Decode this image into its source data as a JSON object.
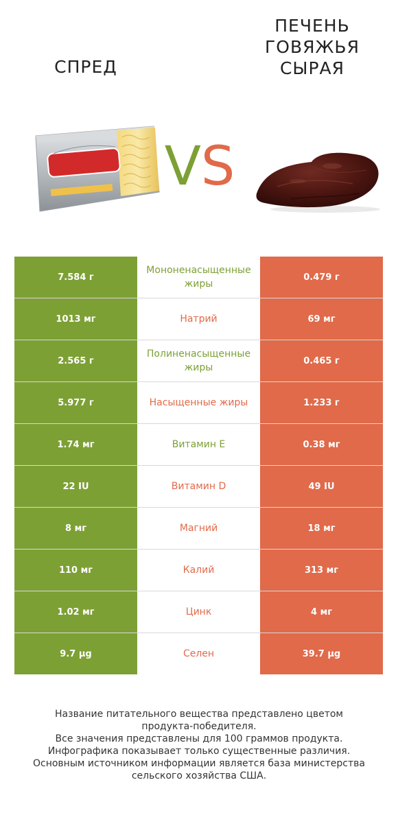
{
  "title_left": "Спред",
  "title_right_lines": [
    "Печень",
    "говяжья",
    "сырая"
  ],
  "vs": {
    "v": "V",
    "s": "S"
  },
  "colors": {
    "green": "#7da035",
    "red": "#e06a4a"
  },
  "images": {
    "left": "spread-pack-image",
    "right": "raw-beef-liver-image"
  },
  "chart_data": {
    "type": "table",
    "columns": [
      "Спред",
      "Печень говяжья сырая"
    ],
    "rows": [
      {
        "label": "Мононенасыщенные жиры",
        "left": "7.584 г",
        "right": "0.479 г",
        "winner": "green"
      },
      {
        "label": "Натрий",
        "left": "1013 мг",
        "right": "69 мг",
        "winner": "red"
      },
      {
        "label": "Полиненасыщенные жиры",
        "left": "2.565 г",
        "right": "0.465 г",
        "winner": "green"
      },
      {
        "label": "Насыщенные жиры",
        "left": "5.977 г",
        "right": "1.233 г",
        "winner": "red"
      },
      {
        "label": "Витамин E",
        "left": "1.74 мг",
        "right": "0.38 мг",
        "winner": "green"
      },
      {
        "label": "Витамин D",
        "left": "22 IU",
        "right": "49 IU",
        "winner": "red"
      },
      {
        "label": "Магний",
        "left": "8 мг",
        "right": "18 мг",
        "winner": "red"
      },
      {
        "label": "Калий",
        "left": "110 мг",
        "right": "313 мг",
        "winner": "red"
      },
      {
        "label": "Цинк",
        "left": "1.02 мг",
        "right": "4 мг",
        "winner": "red"
      },
      {
        "label": "Селен",
        "left": "9.7 µg",
        "right": "39.7 µg",
        "winner": "red"
      }
    ]
  },
  "footer_lines": [
    "Название питательного вещества представлено цветом",
    "продукта-победителя.",
    "Все значения представлены для 100 граммов продукта.",
    "Инфографика показывает только существенные различия.",
    "Основным источником информации является база министерства",
    "сельского хозяйства США."
  ]
}
